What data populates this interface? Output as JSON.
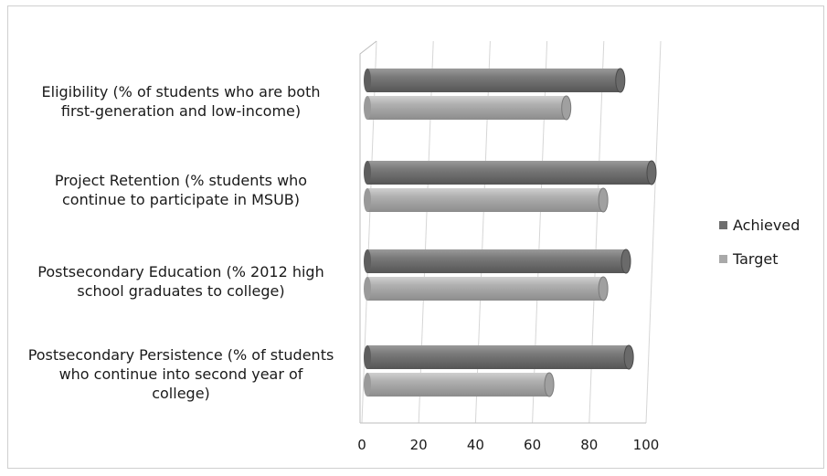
{
  "chart_data": {
    "type": "bar",
    "orientation": "horizontal",
    "style": "3d-cylinder",
    "categories": [
      "Eligibility (% of students who are both first-generation and low-income)",
      "Project Retention (% students who continue to participate in MSUB)",
      "Postsecondary Education (% 2012 high school graduates to college)",
      "Postsecondary Persistence (% of students who continue into second year of college)"
    ],
    "category_lines": [
      [
        "Eligibility (% of students who are both",
        "first-generation and low-income)"
      ],
      [
        "Project Retention (% students who",
        "continue to participate in MSUB)"
      ],
      [
        "Postsecondary Education (% 2012 high",
        "school graduates to college)"
      ],
      [
        "Postsecondary Persistence (% of students",
        "who continue into second year of",
        "college)"
      ]
    ],
    "series": [
      {
        "name": "Achieved",
        "values": [
          89,
          100,
          91,
          92
        ]
      },
      {
        "name": "Target",
        "values": [
          70,
          83,
          83,
          64
        ]
      }
    ],
    "xlim": [
      0,
      100
    ],
    "xticks": [
      "0",
      "20",
      "40",
      "60",
      "80",
      "100"
    ],
    "grid": true,
    "legend_position": "right",
    "colors": {
      "Achieved": "#6e6e6e",
      "Target": "#a9a9a9"
    }
  }
}
